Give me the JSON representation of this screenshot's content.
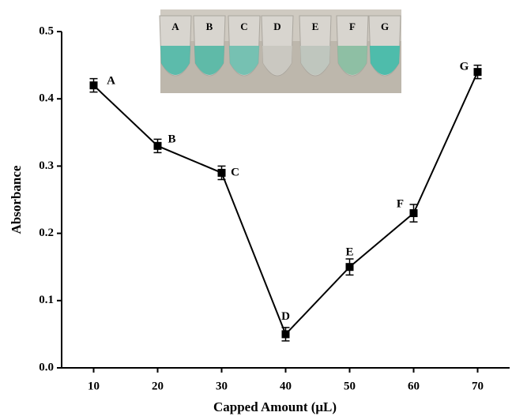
{
  "chart_data": {
    "type": "line",
    "x_label": "Capped Amount (μL)",
    "y_label": "Absorbance",
    "x": [
      10,
      20,
      30,
      40,
      50,
      60,
      70
    ],
    "series": [
      {
        "color": "#000000",
        "values": [
          0.42,
          0.33,
          0.29,
          0.05,
          0.15,
          0.23,
          0.44
        ],
        "errors": [
          0.01,
          0.01,
          0.01,
          0.01,
          0.012,
          0.013,
          0.01
        ],
        "point_labels": [
          "A",
          "B",
          "C",
          "D",
          "E",
          "F",
          "G"
        ]
      }
    ],
    "xlim": [
      5,
      75
    ],
    "xticks": [
      10,
      20,
      30,
      40,
      50,
      60,
      70
    ],
    "ylim": [
      0,
      0.5
    ],
    "yticks": [
      {
        "value": 0,
        "label": "0.0"
      },
      0.1,
      0.2,
      0.3,
      0.4,
      0.5
    ],
    "inset": {
      "labels": [
        "A",
        "B",
        "C",
        "D",
        "E",
        "F",
        "G"
      ]
    }
  }
}
